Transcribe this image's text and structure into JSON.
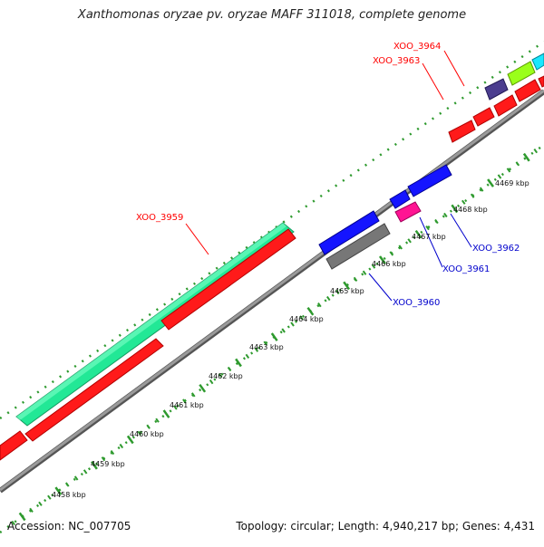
{
  "header": {
    "title": "Xanthomonas oryzae pv. oryzae MAFF 311018, complete genome"
  },
  "footer": {
    "accession": "Accession: NC_007705",
    "summary": "Topology: circular; Length: 4,940,217 bp; Genes: 4,431"
  },
  "colors": {
    "backbone": "#8c8c8c",
    "dots": "#2e9a2e",
    "label_red": "#ff0000",
    "label_blue": "#0000cc"
  },
  "ticks": [
    {
      "label": "4458 kbp"
    },
    {
      "label": "4459 kbp"
    },
    {
      "label": "4460 kbp"
    },
    {
      "label": "4461 kbp"
    },
    {
      "label": "4462 kbp"
    },
    {
      "label": "4463 kbp"
    },
    {
      "label": "4464 kbp"
    },
    {
      "label": "4465 kbp"
    },
    {
      "label": "4466 kbp"
    },
    {
      "label": "4467 kbp"
    },
    {
      "label": "4468 kbp"
    },
    {
      "label": "4469 kbp"
    }
  ],
  "gene_labels": [
    {
      "text": "XOO_3959",
      "color": "red"
    },
    {
      "text": "XOO_3963",
      "color": "red"
    },
    {
      "text": "XOO_3964",
      "color": "red"
    },
    {
      "text": "XOO_3960",
      "color": "blue"
    },
    {
      "text": "XOO_3961",
      "color": "blue"
    },
    {
      "text": "XOO_3962",
      "color": "blue"
    }
  ]
}
